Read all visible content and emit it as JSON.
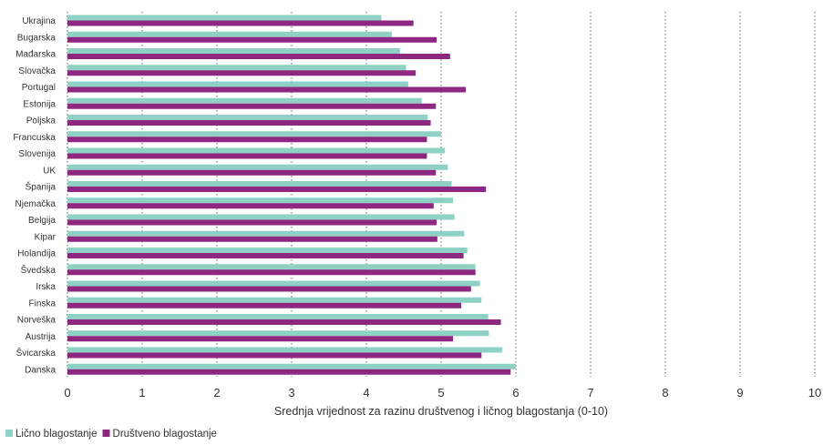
{
  "chart_data": {
    "type": "bar",
    "orientation": "horizontal",
    "categories": [
      "Ukrajina",
      "Bugarska",
      "Mađarska",
      "Slovačka",
      "Portugal",
      "Estonija",
      "Poljska",
      "Francuska",
      "Slovenija",
      "UK",
      "Španija",
      "Njemačka",
      "Belgija",
      "Kipar",
      "Holandija",
      "Švedska",
      "Irska",
      "Finska",
      "Norveška",
      "Austrija",
      "Švicarska",
      "Danska"
    ],
    "series": [
      {
        "name": "Lično blagostanje",
        "color": "#8fd1c4",
        "values": [
          4.2,
          4.34,
          4.45,
          4.53,
          4.56,
          4.74,
          4.82,
          5.0,
          5.05,
          5.09,
          5.14,
          5.16,
          5.18,
          5.31,
          5.35,
          5.46,
          5.52,
          5.54,
          5.63,
          5.64,
          5.82,
          6.0
        ]
      },
      {
        "name": "Društveno blagostanje",
        "color": "#8e2780",
        "values": [
          4.63,
          4.94,
          5.12,
          4.66,
          5.33,
          4.93,
          4.86,
          4.81,
          4.81,
          4.93,
          5.6,
          4.9,
          4.94,
          4.95,
          5.3,
          5.46,
          5.4,
          5.27,
          5.8,
          5.16,
          5.54,
          5.93
        ]
      }
    ],
    "xlabel": "Srednja vrijednost za razinu društvenog i ličnog blagostanja (0-10)",
    "xlim": [
      0,
      10
    ],
    "xticks": [
      "0",
      "1",
      "2",
      "3",
      "4",
      "5",
      "6",
      "7",
      "8",
      "9",
      "10"
    ],
    "grid": "vertical dotted",
    "legend_position": "bottom-left"
  }
}
